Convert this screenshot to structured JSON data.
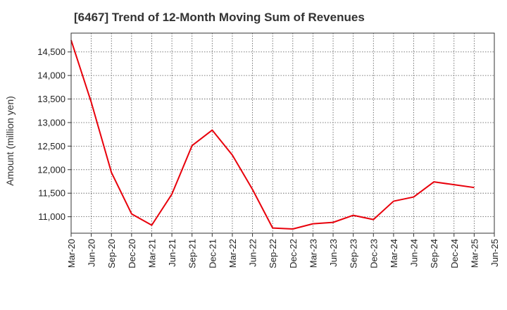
{
  "chart_data": {
    "type": "line",
    "title": "[6467]  Trend of 12-Month Moving Sum of Revenues",
    "ylabel": "Amount (million yen)",
    "xlabel": "",
    "x_ticks": [
      "Mar-20",
      "Jun-20",
      "Sep-20",
      "Dec-20",
      "Mar-21",
      "Jun-21",
      "Sep-21",
      "Dec-21",
      "Mar-22",
      "Jun-22",
      "Sep-22",
      "Dec-22",
      "Mar-23",
      "Jun-23",
      "Sep-23",
      "Dec-23",
      "Mar-24",
      "Jun-24",
      "Sep-24",
      "Dec-24",
      "Mar-25",
      "Jun-25"
    ],
    "y_ticks": [
      11000,
      11500,
      12000,
      12500,
      13000,
      13500,
      14000,
      14500
    ],
    "y_tick_labels": [
      "11,000",
      "11,500",
      "12,000",
      "12,500",
      "13,000",
      "13,500",
      "14,000",
      "14,500"
    ],
    "ylim": [
      10650,
      14900
    ],
    "grid": true,
    "series": [
      {
        "color": "#e8000b",
        "x": [
          "Mar-20",
          "Jun-20",
          "Sep-20",
          "Dec-20",
          "Mar-21",
          "Jun-21",
          "Sep-21",
          "Dec-21",
          "Mar-22",
          "Jun-22",
          "Sep-22",
          "Dec-22",
          "Mar-23",
          "Jun-23",
          "Sep-23",
          "Dec-23",
          "Mar-24",
          "Jun-24",
          "Sep-24",
          "Dec-24",
          "Mar-25"
        ],
        "values": [
          14750,
          13430,
          11940,
          11060,
          10820,
          11480,
          12510,
          12840,
          12310,
          11580,
          10760,
          10740,
          10850,
          10880,
          11030,
          10940,
          11330,
          11420,
          11740,
          11680,
          11620
        ]
      }
    ]
  }
}
